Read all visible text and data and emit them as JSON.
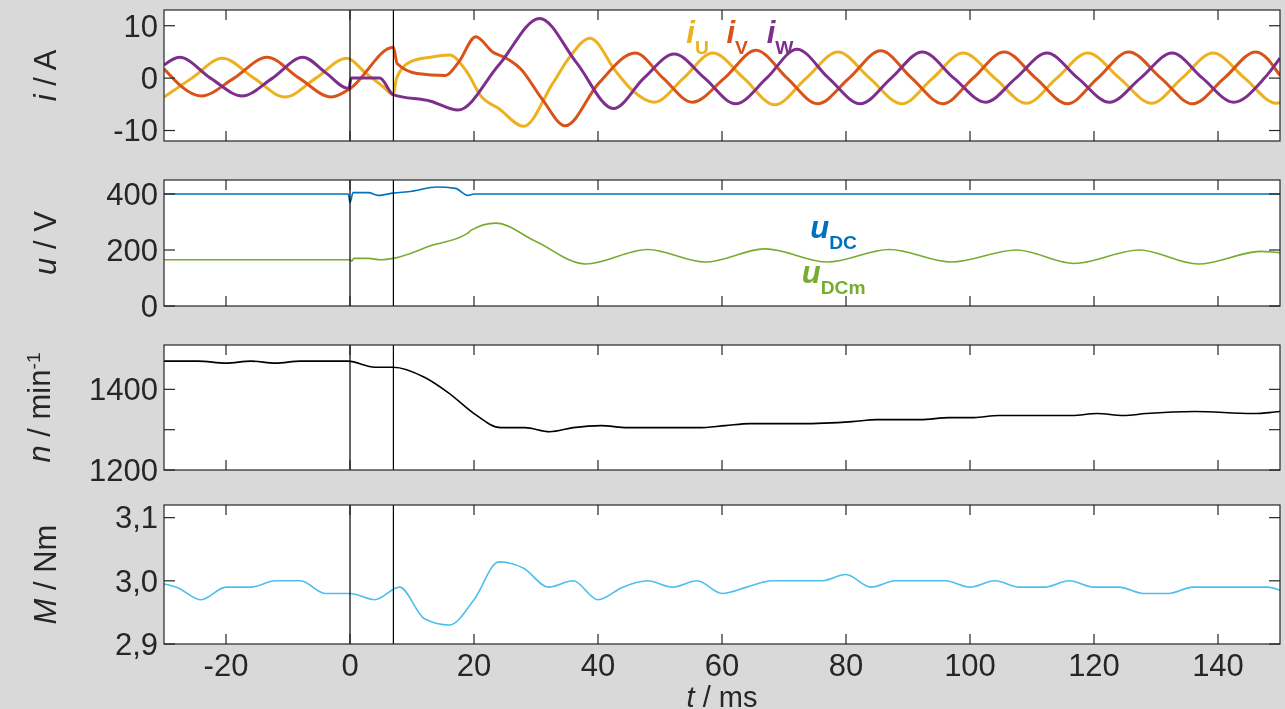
{
  "chart_data": [
    {
      "type": "line",
      "ylabel": "i / A",
      "xlim": [
        -30,
        150
      ],
      "xticks": [
        -20,
        0,
        20,
        40,
        60,
        80,
        100,
        120,
        140
      ],
      "ylim": [
        -12,
        13
      ],
      "yticks": [
        -10,
        0,
        10
      ],
      "tick_labels": "y",
      "grid": false,
      "legend": "top",
      "marker": "none",
      "line_style": "solid",
      "ref_lines": [
        {
          "axis": "x",
          "value": 0,
          "color": "#000000"
        },
        {
          "axis": "x",
          "value": 7,
          "color": "#000000"
        }
      ],
      "series": [
        {
          "name": "i$_{U}$",
          "color": "#edb120",
          "x": [
            -30,
            -25.5,
            -20.6,
            -15.5,
            -10.5,
            -5.5,
            -0.5,
            2.5,
            5.4,
            7,
            7.5,
            9.7,
            13,
            16,
            18.9,
            21.1,
            24,
            28,
            32.7,
            35.6,
            38.7,
            43,
            45.5,
            49.1,
            53.8,
            58.5,
            63.5,
            68.5,
            73.6,
            78.7,
            83.8,
            89,
            94,
            98.9,
            104,
            109.1,
            114,
            119,
            124.1,
            129.3,
            134.2,
            139.2,
            144.3,
            149.4,
            150
          ],
          "values": [
            -3.6,
            0,
            3.8,
            0,
            -3.6,
            0,
            3.8,
            1,
            -1.7,
            -3.2,
            0,
            3.1,
            4,
            4.4,
            1.1,
            -3.4,
            -5.8,
            -9.2,
            -1,
            4.3,
            7.6,
            1.1,
            -2.3,
            -4.6,
            0,
            4.8,
            0,
            -5.1,
            0,
            5,
            0,
            -4.9,
            0,
            4.8,
            0,
            -4.8,
            0,
            4.8,
            0,
            -4.8,
            0,
            4.8,
            0,
            -4.8,
            -4.7
          ]
        },
        {
          "name": "i$_{V}$",
          "color": "#d95319",
          "x": [
            -30,
            -24,
            -18.7,
            -13.4,
            -8.2,
            -3,
            0,
            7,
            7.6,
            10.8,
            15.4,
            17.5,
            20.3,
            23,
            25.2,
            27.5,
            31,
            34.7,
            40.1,
            46,
            50.5,
            55.2,
            60.4,
            65.5,
            70.5,
            75.4,
            80.5,
            85.6,
            90.6,
            95.6,
            100.5,
            105.5,
            110.6,
            115.7,
            120.6,
            125.6,
            130.8,
            135.9,
            141,
            146.1,
            150
          ],
          "values": [
            1.8,
            -3.4,
            0,
            4,
            0,
            -3.6,
            -2,
            5.9,
            2.8,
            0.9,
            0.5,
            3,
            7.9,
            5,
            3.8,
            1.8,
            -4,
            -9.1,
            -1,
            4.8,
            0,
            -4.6,
            0,
            5.3,
            0,
            -4.9,
            0,
            5.2,
            0,
            -4.9,
            0,
            5,
            0,
            -4.9,
            0,
            5,
            0,
            -4.9,
            0,
            5,
            0.5
          ]
        },
        {
          "name": "i$_{W}$",
          "color": "#7e2f8e",
          "x": [
            -30,
            -27.5,
            -22.5,
            -17.4,
            -12.5,
            -7.6,
            -3.9,
            -0.2,
            0.2,
            4.8,
            7,
            13,
            17.4,
            24,
            30.6,
            36.5,
            42.5,
            47.4,
            52.3,
            57.2,
            62.2,
            67.2,
            72.1,
            77.2,
            82.3,
            87.3,
            92.3,
            97.4,
            102.5,
            107.4,
            112.4,
            117.4,
            122.5,
            127.5,
            132.6,
            137.5,
            142.5,
            147.5,
            150
          ],
          "values": [
            2.5,
            4,
            0,
            -3.4,
            0,
            4,
            1,
            -2,
            0,
            0,
            -3.2,
            -4.4,
            -6.1,
            2.5,
            11.4,
            3,
            -5.8,
            0,
            4.6,
            0,
            -4.9,
            0,
            5.5,
            0,
            -4.9,
            0,
            5,
            0,
            -4.6,
            0,
            4.8,
            0,
            -4.6,
            0,
            4.8,
            0,
            -4.6,
            0,
            3.8
          ]
        }
      ]
    },
    {
      "type": "line",
      "ylabel": "u / V",
      "xlim": [
        -30,
        150
      ],
      "xticks": [
        -20,
        0,
        20,
        40,
        60,
        80,
        100,
        120,
        140
      ],
      "ylim": [
        0,
        450
      ],
      "yticks": [
        0,
        200,
        400
      ],
      "tick_labels": "y",
      "grid": false,
      "legend": "center",
      "marker": "none",
      "line_style": "solid",
      "ref_lines": [
        {
          "axis": "x",
          "value": 0,
          "color": "#000000"
        },
        {
          "axis": "x",
          "value": 7,
          "color": "#000000"
        }
      ],
      "series": [
        {
          "name": "u$_{DC}$",
          "color": "#0072bd",
          "x": [
            -30,
            -0.3,
            0,
            0.5,
            3,
            4.5,
            7,
            10,
            14,
            17,
            19,
            20,
            150
          ],
          "values": [
            400,
            400,
            370,
            405,
            405,
            395,
            403,
            410,
            425,
            420,
            395,
            400,
            400
          ]
        },
        {
          "name": "u$_{DCm}$",
          "color": "#77ac30",
          "x": [
            -30,
            0,
            0.3,
            0.6,
            3,
            5,
            7,
            13,
            19,
            19.5,
            23.5,
            30,
            38,
            48,
            57.3,
            67,
            77,
            87,
            97,
            107.5,
            116.8,
            127.3,
            136.8,
            147,
            150
          ],
          "values": [
            165,
            165,
            160,
            170,
            170,
            165,
            170,
            215,
            260,
            270,
            296,
            230,
            150,
            202,
            157,
            204,
            157,
            202,
            157,
            200,
            152,
            200,
            150,
            195,
            190
          ]
        }
      ]
    },
    {
      "type": "line",
      "ylabel": "n / min$^{-1}$",
      "xlim": [
        -30,
        150
      ],
      "xticks": [
        -20,
        0,
        20,
        40,
        60,
        80,
        100,
        120,
        140
      ],
      "ylim": [
        1200,
        1510
      ],
      "yticks": [
        1200,
        {
          "value": 1300,
          "label": null
        },
        1400
      ],
      "tick_labels": "y",
      "grid": false,
      "legend": false,
      "marker": "none",
      "line_style": "solid",
      "ref_lines": [
        {
          "axis": "x",
          "value": 0,
          "color": "#000000"
        },
        {
          "axis": "x",
          "value": 7,
          "color": "#000000"
        }
      ],
      "series": [
        {
          "color": "#000000",
          "x": [
            -30,
            -24.5,
            -20,
            -16,
            -12,
            -8,
            -4,
            -0.3,
            4,
            7,
            12,
            16,
            20,
            24.3,
            28.2,
            32.2,
            36,
            40.5,
            44.7,
            49.3,
            56.2,
            60.5,
            64.5,
            68.5,
            72.5,
            81,
            85,
            92,
            96.7,
            100.6,
            104.6,
            108.6,
            116.5,
            120.5,
            124.7,
            128.4,
            136.3,
            145.5,
            150
          ],
          "values": [
            1470,
            1470,
            1465,
            1470,
            1465,
            1470,
            1470,
            1470,
            1455,
            1455,
            1430,
            1390,
            1340,
            1305,
            1305,
            1295,
            1305,
            1310,
            1305,
            1305,
            1305,
            1310,
            1315,
            1315,
            1315,
            1320,
            1325,
            1325,
            1330,
            1330,
            1335,
            1335,
            1335,
            1340,
            1335,
            1340,
            1345,
            1340,
            1345
          ]
        }
      ]
    },
    {
      "type": "line",
      "ylabel": "M / Nm",
      "xlabel": "t / ms",
      "xlim": [
        -30,
        150
      ],
      "xticks": [
        -20,
        0,
        20,
        40,
        60,
        80,
        100,
        120,
        140
      ],
      "ylim": [
        2.9,
        3.12
      ],
      "yticks": [
        {
          "value": 2.9,
          "label": "2,9"
        },
        {
          "value": 3.0,
          "label": "3,0"
        },
        {
          "value": 3.1,
          "label": "3,1"
        }
      ],
      "grid": false,
      "legend": false,
      "marker": "none",
      "line_style": "solid",
      "ref_lines": [
        {
          "axis": "x",
          "value": 0,
          "color": "#000000"
        },
        {
          "axis": "x",
          "value": 7,
          "color": "#000000"
        }
      ],
      "series": [
        {
          "color": "#4dbeee",
          "x": [
            -30,
            -28,
            -24,
            -20,
            -16,
            -12,
            -8,
            -4,
            0,
            4,
            8,
            12,
            16,
            20,
            24,
            28,
            32,
            36,
            40,
            44,
            48,
            52,
            56,
            60,
            64,
            68,
            72,
            76,
            80,
            84,
            88,
            92,
            96,
            100,
            104,
            108,
            112,
            116,
            120,
            124,
            128,
            132,
            136,
            140,
            144,
            148,
            150
          ],
          "values": [
            2.995,
            2.99,
            2.97,
            2.99,
            2.99,
            3.0,
            3.0,
            2.98,
            2.98,
            2.97,
            2.99,
            2.94,
            2.93,
            2.97,
            3.03,
            3.02,
            2.99,
            3.0,
            2.97,
            2.99,
            3.0,
            2.99,
            3.0,
            2.98,
            2.99,
            3.0,
            3.0,
            3.0,
            3.01,
            2.99,
            3.0,
            3.0,
            3.0,
            2.99,
            3.0,
            2.99,
            2.99,
            3.0,
            2.99,
            2.99,
            2.98,
            2.98,
            2.99,
            2.99,
            2.99,
            2.99,
            2.985
          ]
        }
      ]
    }
  ]
}
